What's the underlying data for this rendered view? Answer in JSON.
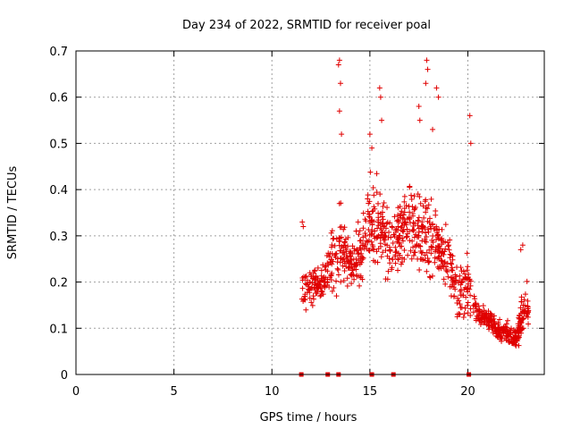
{
  "chart_data": {
    "type": "scatter",
    "title": "Day 234 of 2022, SRMTID for receiver poal",
    "xlabel": "GPS time / hours",
    "ylabel": "SRMTID / TECUs",
    "xlim": [
      0,
      23.9
    ],
    "ylim": [
      0,
      0.7
    ],
    "xticks": [
      0,
      5,
      10,
      15,
      20
    ],
    "yticks": [
      0,
      0.1,
      0.2,
      0.3,
      0.4,
      0.5,
      0.6,
      0.7
    ],
    "grid": true,
    "marker": "plus",
    "color": "#e00000",
    "series": [
      {
        "name": "SRMTID",
        "seed": 234,
        "envelope": [
          {
            "t": 11.5,
            "center": 0.18,
            "spread": 0.07,
            "n": 30
          },
          {
            "t": 12.0,
            "center": 0.19,
            "spread": 0.06,
            "n": 40
          },
          {
            "t": 12.5,
            "center": 0.19,
            "spread": 0.05,
            "n": 35
          },
          {
            "t": 13.0,
            "center": 0.24,
            "spread": 0.1,
            "n": 40
          },
          {
            "t": 13.5,
            "center": 0.27,
            "spread": 0.14,
            "n": 45
          },
          {
            "t": 14.0,
            "center": 0.24,
            "spread": 0.06,
            "n": 45
          },
          {
            "t": 14.5,
            "center": 0.26,
            "spread": 0.08,
            "n": 45
          },
          {
            "t": 15.0,
            "center": 0.33,
            "spread": 0.12,
            "n": 45
          },
          {
            "t": 15.5,
            "center": 0.32,
            "spread": 0.13,
            "n": 45
          },
          {
            "t": 16.0,
            "center": 0.28,
            "spread": 0.09,
            "n": 45
          },
          {
            "t": 16.5,
            "center": 0.3,
            "spread": 0.11,
            "n": 45
          },
          {
            "t": 17.0,
            "center": 0.32,
            "spread": 0.12,
            "n": 45
          },
          {
            "t": 17.5,
            "center": 0.31,
            "spread": 0.12,
            "n": 45
          },
          {
            "t": 18.0,
            "center": 0.3,
            "spread": 0.12,
            "n": 45
          },
          {
            "t": 18.5,
            "center": 0.28,
            "spread": 0.1,
            "n": 45
          },
          {
            "t": 19.0,
            "center": 0.25,
            "spread": 0.1,
            "n": 40
          },
          {
            "t": 19.5,
            "center": 0.16,
            "spread": 0.07,
            "n": 40
          },
          {
            "t": 20.0,
            "center": 0.2,
            "spread": 0.09,
            "n": 30
          },
          {
            "t": 20.5,
            "center": 0.13,
            "spread": 0.03,
            "n": 45
          },
          {
            "t": 21.0,
            "center": 0.12,
            "spread": 0.03,
            "n": 50
          },
          {
            "t": 21.5,
            "center": 0.1,
            "spread": 0.03,
            "n": 50
          },
          {
            "t": 22.0,
            "center": 0.09,
            "spread": 0.03,
            "n": 50
          },
          {
            "t": 22.5,
            "center": 0.08,
            "spread": 0.03,
            "n": 45
          },
          {
            "t": 22.8,
            "center": 0.14,
            "spread": 0.08,
            "n": 25
          }
        ],
        "outliers": [
          [
            13.4,
            0.67
          ],
          [
            13.45,
            0.68
          ],
          [
            13.5,
            0.63
          ],
          [
            13.45,
            0.57
          ],
          [
            13.55,
            0.52
          ],
          [
            14.3,
            0.31
          ],
          [
            14.4,
            0.33
          ],
          [
            15.0,
            0.52
          ],
          [
            15.1,
            0.49
          ],
          [
            15.5,
            0.62
          ],
          [
            15.55,
            0.6
          ],
          [
            15.6,
            0.55
          ],
          [
            17.5,
            0.58
          ],
          [
            17.55,
            0.55
          ],
          [
            17.9,
            0.68
          ],
          [
            17.95,
            0.66
          ],
          [
            17.85,
            0.63
          ],
          [
            18.4,
            0.62
          ],
          [
            18.5,
            0.6
          ],
          [
            18.2,
            0.53
          ],
          [
            20.1,
            0.56
          ],
          [
            20.15,
            0.5
          ],
          [
            22.7,
            0.27
          ],
          [
            22.8,
            0.28
          ],
          [
            11.55,
            0.33
          ],
          [
            11.6,
            0.32
          ]
        ],
        "zero_markers": [
          11.5,
          12.85,
          13.4,
          15.1,
          16.2,
          20.05
        ]
      }
    ]
  }
}
